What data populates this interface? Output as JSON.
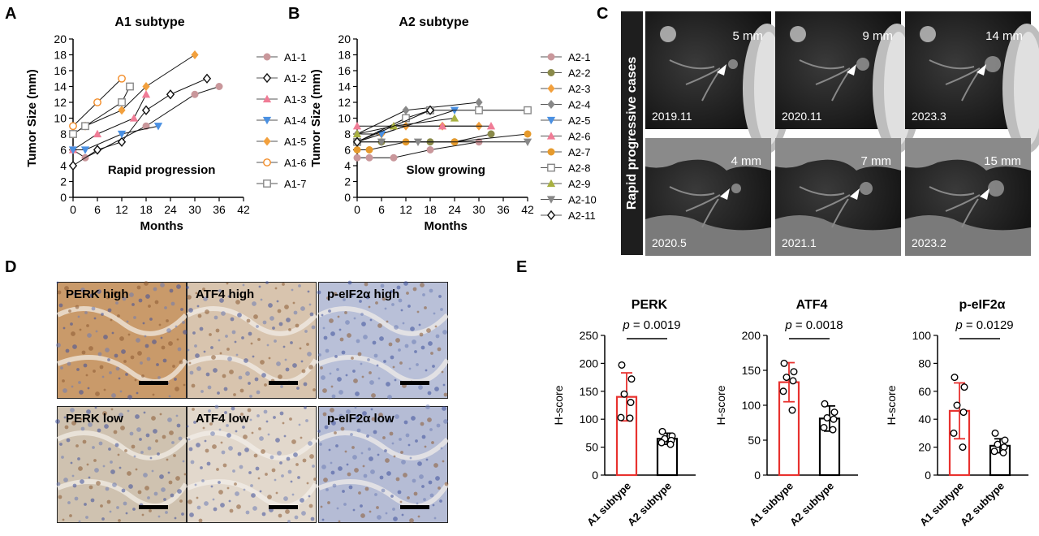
{
  "panels": {
    "A": {
      "letter": "A"
    },
    "B": {
      "letter": "B"
    },
    "C": {
      "letter": "C"
    },
    "D": {
      "letter": "D"
    },
    "E": {
      "letter": "E"
    }
  },
  "chart_data": [
    {
      "id": "A",
      "type": "line",
      "title": "A1 subtype",
      "xlabel": "Months",
      "ylabel": "Tumor Size (mm)",
      "annotation": "Rapid progression",
      "xlim": [
        0,
        42
      ],
      "ylim": [
        0,
        20
      ],
      "xticks": [
        0,
        6,
        12,
        18,
        24,
        30,
        36,
        42
      ],
      "yticks": [
        0,
        2,
        4,
        6,
        8,
        10,
        12,
        14,
        16,
        18,
        20
      ],
      "legend_position": "right",
      "series": [
        {
          "name": "A1-1",
          "color": "#c9979b",
          "marker": "circle",
          "x": [
            0,
            3,
            18,
            30,
            36
          ],
          "y": [
            6,
            5,
            9,
            13,
            14
          ]
        },
        {
          "name": "A1-2",
          "color": "#111111",
          "marker": "diamond-open",
          "x": [
            0,
            6,
            12,
            18,
            24,
            33
          ],
          "y": [
            4,
            6,
            7,
            11,
            13,
            15
          ]
        },
        {
          "name": "A1-3",
          "color": "#f07c96",
          "marker": "triangle-up",
          "x": [
            0,
            6,
            15,
            18
          ],
          "y": [
            6,
            8,
            10,
            13
          ]
        },
        {
          "name": "A1-4",
          "color": "#4a90e2",
          "marker": "triangle-down",
          "x": [
            0,
            3,
            12,
            21
          ],
          "y": [
            6,
            6,
            8,
            9
          ]
        },
        {
          "name": "A1-5",
          "color": "#f2a03d",
          "marker": "diamond",
          "x": [
            0,
            3,
            12,
            18,
            30
          ],
          "y": [
            8,
            9,
            11,
            14,
            18
          ]
        },
        {
          "name": "A1-6",
          "color": "#f28c28",
          "marker": "circle-open",
          "x": [
            0,
            6,
            12
          ],
          "y": [
            9,
            12,
            15
          ]
        },
        {
          "name": "A1-7",
          "color": "#888888",
          "marker": "square-open",
          "x": [
            0,
            3,
            12,
            14
          ],
          "y": [
            8,
            9,
            12,
            14
          ]
        }
      ]
    },
    {
      "id": "B",
      "type": "line",
      "title": "A2 subtype",
      "xlabel": "Months",
      "ylabel": "Tumor Size (mm)",
      "annotation": "Slow growing",
      "xlim": [
        0,
        42
      ],
      "ylim": [
        0,
        20
      ],
      "xticks": [
        0,
        6,
        12,
        18,
        24,
        30,
        36,
        42
      ],
      "yticks": [
        0,
        2,
        4,
        6,
        8,
        10,
        12,
        14,
        16,
        18,
        20
      ],
      "legend_position": "right",
      "series": [
        {
          "name": "A2-1",
          "color": "#c9979b",
          "marker": "circle",
          "x": [
            0,
            3,
            9,
            18,
            30
          ],
          "y": [
            5,
            5,
            5,
            6,
            7
          ]
        },
        {
          "name": "A2-2",
          "color": "#8a8a4a",
          "marker": "circle",
          "x": [
            0,
            6,
            18,
            24,
            33
          ],
          "y": [
            7,
            7,
            7,
            7,
            8
          ]
        },
        {
          "name": "A2-3",
          "color": "#f2a03d",
          "marker": "diamond",
          "x": [
            0,
            6,
            12,
            21,
            30
          ],
          "y": [
            8,
            8,
            9,
            9,
            9
          ]
        },
        {
          "name": "A2-4",
          "color": "#888888",
          "marker": "diamond",
          "x": [
            0,
            12,
            30
          ],
          "y": [
            8,
            11,
            12
          ]
        },
        {
          "name": "A2-5",
          "color": "#4a90e2",
          "marker": "triangle-down",
          "x": [
            0,
            6,
            24
          ],
          "y": [
            7,
            8,
            11
          ]
        },
        {
          "name": "A2-6",
          "color": "#f07c96",
          "marker": "triangle-up",
          "x": [
            0,
            9,
            21,
            33
          ],
          "y": [
            9,
            9,
            9,
            9
          ]
        },
        {
          "name": "A2-7",
          "color": "#e69a2c",
          "marker": "circle",
          "x": [
            0,
            3,
            12,
            24,
            42
          ],
          "y": [
            6,
            6,
            7,
            7,
            8
          ]
        },
        {
          "name": "A2-8",
          "color": "#888888",
          "marker": "square-open",
          "x": [
            0,
            12,
            18,
            30,
            42
          ],
          "y": [
            7,
            10,
            11,
            11,
            11
          ]
        },
        {
          "name": "A2-9",
          "color": "#a8b040",
          "marker": "triangle-up",
          "x": [
            0,
            9,
            24
          ],
          "y": [
            8,
            9,
            10
          ]
        },
        {
          "name": "A2-10",
          "color": "#888888",
          "marker": "triangle-down",
          "x": [
            0,
            6,
            15,
            42
          ],
          "y": [
            7,
            7,
            7,
            7
          ]
        },
        {
          "name": "A2-11",
          "color": "#111111",
          "marker": "diamond-open",
          "x": [
            0,
            18
          ],
          "y": [
            7,
            11
          ]
        }
      ]
    },
    {
      "id": "E1",
      "type": "bar",
      "title": "PERK",
      "ylabel": "H-score",
      "categories": [
        "A1 subtype",
        "A2 subtype"
      ],
      "values": [
        140,
        65
      ],
      "error": [
        43,
        10
      ],
      "points": [
        [
          197,
          172,
          145,
          130,
          103,
          102
        ],
        [
          78,
          70,
          65,
          62,
          58,
          55
        ]
      ],
      "pvalue": "p = 0.0019",
      "p_italic": "p",
      "p_rest": " = 0.0019",
      "ylim": [
        0,
        250
      ],
      "yticks": [
        0,
        50,
        100,
        150,
        200,
        250
      ],
      "colors": [
        "#e8322f",
        "#000000"
      ]
    },
    {
      "id": "E2",
      "type": "bar",
      "title": "ATF4",
      "ylabel": "H-score",
      "categories": [
        "A1 subtype",
        "A2 subtype"
      ],
      "values": [
        133,
        81
      ],
      "error": [
        28,
        18
      ],
      "points": [
        [
          160,
          148,
          140,
          135,
          120,
          93
        ],
        [
          102,
          90,
          82,
          80,
          68,
          65
        ]
      ],
      "pvalue": "p = 0.0018",
      "p_italic": "p",
      "p_rest": " = 0.0018",
      "ylim": [
        0,
        200
      ],
      "yticks": [
        0,
        50,
        100,
        150,
        200
      ],
      "colors": [
        "#e8322f",
        "#000000"
      ]
    },
    {
      "id": "E3",
      "type": "bar",
      "title": "p-eIF2α",
      "ylabel": "H-score",
      "categories": [
        "A1 subtype",
        "A2 subtype"
      ],
      "values": [
        46,
        21
      ],
      "error": [
        20,
        5
      ],
      "points": [
        [
          70,
          63,
          50,
          45,
          30,
          20
        ],
        [
          30,
          25,
          22,
          20,
          17,
          16
        ]
      ],
      "pvalue": "p = 0.0129",
      "p_italic": "p",
      "p_rest": " = 0.0129",
      "ylim": [
        0,
        100
      ],
      "yticks": [
        0,
        20,
        40,
        60,
        80,
        100
      ],
      "colors": [
        "#e8322f",
        "#000000"
      ]
    }
  ],
  "ct_panel": {
    "side_label": "Rapid progressive  cases",
    "images": [
      {
        "date": "2019.11",
        "size": "5 mm"
      },
      {
        "date": "2020.11",
        "size": "9 mm"
      },
      {
        "date": "2023.3",
        "size": "14 mm"
      },
      {
        "date": "2020.5",
        "size": "4 mm"
      },
      {
        "date": "2021.1",
        "size": "7 mm"
      },
      {
        "date": "2023.2",
        "size": "15 mm"
      }
    ]
  },
  "ihc_panel": {
    "images": [
      {
        "label": "PERK high",
        "tone": "#c99a6a"
      },
      {
        "label": "ATF4 high",
        "tone": "#d8c4ae"
      },
      {
        "label": "p-eIF2α high",
        "tone": "#b9c0d8"
      },
      {
        "label": "PERK low",
        "tone": "#cfc2b0"
      },
      {
        "label": "ATF4 low",
        "tone": "#e2d8cc"
      },
      {
        "label": "p-eIF2α low",
        "tone": "#b5bcd5"
      }
    ]
  }
}
